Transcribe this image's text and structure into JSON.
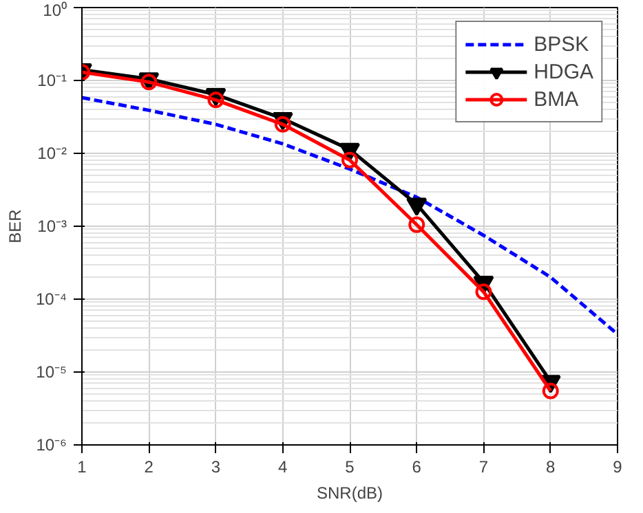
{
  "chart_data": {
    "type": "line",
    "xlabel": "SNR(dB)",
    "ylabel": "BER",
    "log": "y",
    "grid": true,
    "legend": "top right",
    "xlim": [
      1,
      9
    ],
    "xticks": [
      1,
      2,
      3,
      4,
      5,
      6,
      7,
      8,
      9
    ],
    "ylim": [
      1e-06,
      1
    ],
    "yticks": [
      {
        "value": 1e-06,
        "label": "10⁻⁶"
      },
      {
        "value": 1e-05,
        "label": "10⁻⁵"
      },
      {
        "value": 0.0001,
        "label": "10⁻⁴"
      },
      {
        "value": 0.001,
        "label": "10⁻³"
      },
      {
        "value": 0.01,
        "label": "10⁻²"
      },
      {
        "value": 0.1,
        "label": "10⁻¹"
      },
      {
        "value": 1,
        "label": "10⁰"
      }
    ],
    "series": [
      {
        "name": "BPSK",
        "color": "#0000ff",
        "line_style": "dashed",
        "marker": "none",
        "x": [
          1,
          2,
          3,
          4,
          5,
          6,
          7,
          8,
          9
        ],
        "values": [
          0.058,
          0.039,
          0.025,
          0.0135,
          0.0061,
          0.0025,
          0.00075,
          0.0002,
          3.3e-05
        ]
      },
      {
        "name": "HDGA",
        "color": "#000000",
        "line_style": "solid",
        "marker": "triangle",
        "x": [
          1,
          2,
          3,
          4,
          5,
          6,
          7,
          8
        ],
        "values": [
          0.14,
          0.105,
          0.064,
          0.03,
          0.0113,
          0.002,
          0.00017,
          7.4e-06
        ]
      },
      {
        "name": "BMA",
        "color": "#ff0000",
        "line_style": "solid",
        "marker": "circle",
        "x": [
          1,
          2,
          3,
          4,
          5,
          6,
          7,
          8
        ],
        "values": [
          0.13,
          0.095,
          0.054,
          0.025,
          0.0081,
          0.00105,
          0.000126,
          5.5e-06
        ]
      }
    ]
  }
}
